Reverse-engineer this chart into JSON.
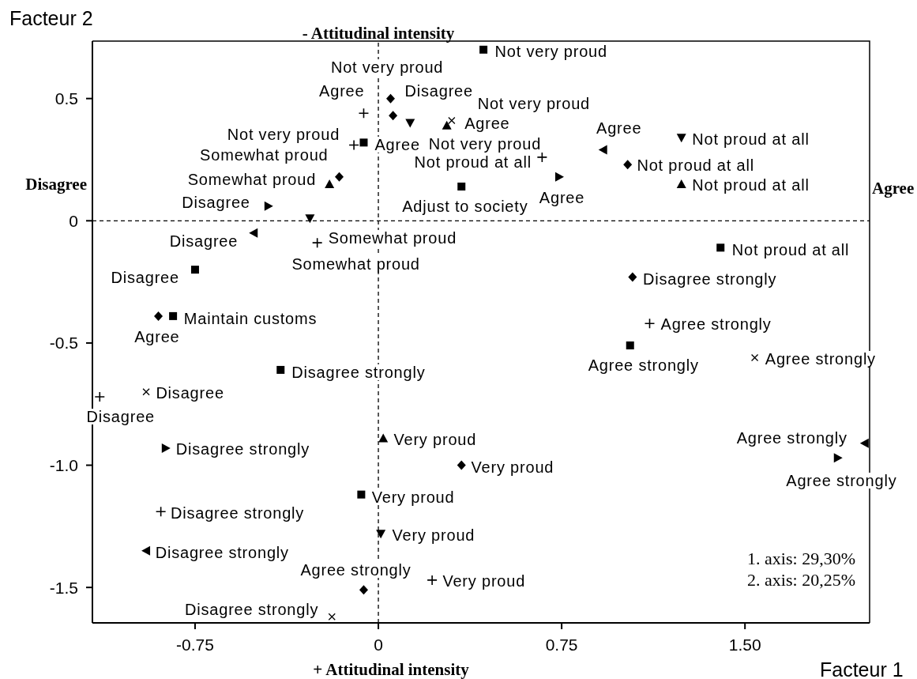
{
  "chart_data": {
    "type": "scatter",
    "xlabel": "Facteur 1",
    "ylabel": "Facteur 2",
    "xlim": [
      -1.17,
      2.01
    ],
    "ylim": [
      -1.645,
      0.735
    ],
    "xticks": [
      -0.75,
      0,
      0.75,
      {
        "value": 1.5,
        "label": "1.50"
      }
    ],
    "yticks": [
      -1.5,
      {
        "value": -1,
        "label": "-1.0"
      },
      -0.5,
      0,
      0.5
    ],
    "ref_lines": [
      {
        "axis": "x",
        "value": 0,
        "color": "#000000",
        "line_style": "dashed",
        "label": "- Attitudinal intensity"
      },
      {
        "axis": "y",
        "value": 0,
        "color": "#000000",
        "line_style": "dashed",
        "label": "Agree"
      }
    ],
    "series": [
      {
        "color": "#000000",
        "marker": "square",
        "x": [
          0.43,
          -0.06,
          0.34,
          -0.75,
          -0.84,
          -0.4,
          1.4,
          1.03,
          -0.07
        ],
        "values": [
          0.7,
          0.32,
          0.14,
          -0.2,
          -0.39,
          -0.61,
          -0.11,
          -0.51,
          -1.12
        ]
      },
      {
        "color": "#000000",
        "marker": "diamond",
        "x": [
          0.05,
          0.06,
          -0.16,
          1.02,
          -0.9,
          1.04,
          -0.06,
          0.34
        ],
        "values": [
          0.5,
          0.43,
          0.18,
          0.23,
          -0.39,
          -0.23,
          -1.51,
          -1.0
        ]
      },
      {
        "color": "#000000",
        "marker": "triangle",
        "x": [
          -0.2,
          0.28,
          1.24,
          0.02
        ],
        "values": [
          0.15,
          0.39,
          0.15,
          -0.89
        ]
      },
      {
        "color": "#000000",
        "marker": "triangle-down",
        "x": [
          -0.28,
          0.13,
          1.24,
          0.01
        ],
        "values": [
          0.01,
          0.4,
          0.34,
          -1.28
        ]
      },
      {
        "color": "#000000",
        "marker": "triangle-right",
        "x": [
          -0.45,
          0.74,
          -0.87,
          1.88
        ],
        "values": [
          0.06,
          0.18,
          -0.93,
          -0.97
        ]
      },
      {
        "color": "#000000",
        "marker": "triangle-left",
        "x": [
          0.92,
          -0.51,
          1.99,
          -0.95
        ],
        "values": [
          0.29,
          -0.05,
          -0.91,
          -1.35
        ]
      },
      {
        "color": "#000000",
        "marker": "cross",
        "x": [
          -0.06,
          -0.1,
          0.67,
          -0.25,
          -1.14,
          1.11,
          -0.89,
          0.22
        ],
        "values": [
          0.44,
          0.31,
          0.26,
          -0.09,
          -0.72,
          -0.42,
          -1.19,
          -1.47
        ]
      },
      {
        "color": "#000000",
        "marker": "x",
        "x": [
          0.3,
          -0.95,
          1.54,
          -0.19
        ],
        "values": [
          0.41,
          -0.7,
          -0.56,
          -1.62
        ]
      }
    ],
    "annotations": [
      "+ Attitudinal intensity",
      "Disagree",
      "1. axis: 29,30%",
      "2. axis: 20,25%",
      {
        "text": "Not very proud",
        "x": 0.43,
        "y": 0.7
      },
      {
        "text": "Agree",
        "x": -0.06,
        "y": 0.32
      },
      {
        "text": "Adjust to society",
        "x": 0.34,
        "y": 0.14
      },
      {
        "text": "Disagree",
        "x": -0.75,
        "y": -0.2
      },
      {
        "text": "Maintain customs",
        "x": -0.84,
        "y": -0.39
      },
      {
        "text": "Disagree strongly",
        "x": -0.4,
        "y": -0.61
      },
      {
        "text": "Not proud at all",
        "x": 1.4,
        "y": -0.11
      },
      {
        "text": "Agree strongly",
        "x": 1.03,
        "y": -0.51
      },
      {
        "text": "Very proud",
        "x": -0.07,
        "y": -1.12
      },
      {
        "text": "Disagree",
        "x": 0.05,
        "y": 0.5
      },
      {
        "text": "Not very proud",
        "x": 0.06,
        "y": 0.43
      },
      {
        "text": "Somewhat proud",
        "x": -0.16,
        "y": 0.18
      },
      {
        "text": "Not proud at all",
        "x": 1.02,
        "y": 0.23
      },
      {
        "text": "Agree",
        "x": -0.9,
        "y": -0.39
      },
      {
        "text": "Disagree strongly",
        "x": 1.04,
        "y": -0.23
      },
      {
        "text": "Agree strongly",
        "x": -0.06,
        "y": -1.51
      },
      {
        "text": "Very proud",
        "x": 0.34,
        "y": -1.0
      },
      {
        "text": "Somewhat proud",
        "x": -0.2,
        "y": 0.15
      },
      {
        "text": "Not very proud",
        "x": 0.28,
        "y": 0.39
      },
      {
        "text": "Not proud at all",
        "x": 1.24,
        "y": 0.15
      },
      {
        "text": "Very proud",
        "x": 0.02,
        "y": -0.89
      },
      {
        "text": "Somewhat proud",
        "x": -0.28,
        "y": 0.01
      },
      {
        "text": "Not very proud",
        "x": 0.13,
        "y": 0.4
      },
      {
        "text": "Not proud at all",
        "x": 1.24,
        "y": 0.34
      },
      {
        "text": "Very proud",
        "x": 0.01,
        "y": -1.28
      },
      {
        "text": "Disagree",
        "x": -0.45,
        "y": 0.06
      },
      {
        "text": "Agree",
        "x": 0.74,
        "y": 0.18
      },
      {
        "text": "Disagree strongly",
        "x": -0.87,
        "y": -0.93
      },
      {
        "text": "Agree strongly",
        "x": 1.88,
        "y": -0.97
      },
      {
        "text": "Agree",
        "x": 0.92,
        "y": 0.29
      },
      {
        "text": "Disagree",
        "x": -0.51,
        "y": -0.05
      },
      {
        "text": "Agree strongly",
        "x": 1.99,
        "y": -0.91
      },
      {
        "text": "Disagree strongly",
        "x": -0.95,
        "y": -1.35
      },
      {
        "text": "Agree",
        "x": -0.06,
        "y": 0.44
      },
      {
        "text": "Not very proud",
        "x": -0.1,
        "y": 0.31
      },
      {
        "text": "Not proud at all",
        "x": 0.67,
        "y": 0.26
      },
      {
        "text": "Somewhat proud",
        "x": -0.25,
        "y": -0.09
      },
      {
        "text": "Disagree",
        "x": -1.14,
        "y": -0.72
      },
      {
        "text": "Agree strongly",
        "x": 1.11,
        "y": -0.42
      },
      {
        "text": "Disagree strongly",
        "x": -0.89,
        "y": -1.19
      },
      {
        "text": "Very proud",
        "x": 0.22,
        "y": -1.47
      },
      {
        "text": "Agree",
        "x": 0.3,
        "y": 0.41
      },
      {
        "text": "Disagree",
        "x": -0.95,
        "y": -0.7
      },
      {
        "text": "Agree strongly",
        "x": 1.54,
        "y": -0.56
      },
      {
        "text": "Disagree strongly",
        "x": -0.19,
        "y": -1.62
      }
    ]
  }
}
